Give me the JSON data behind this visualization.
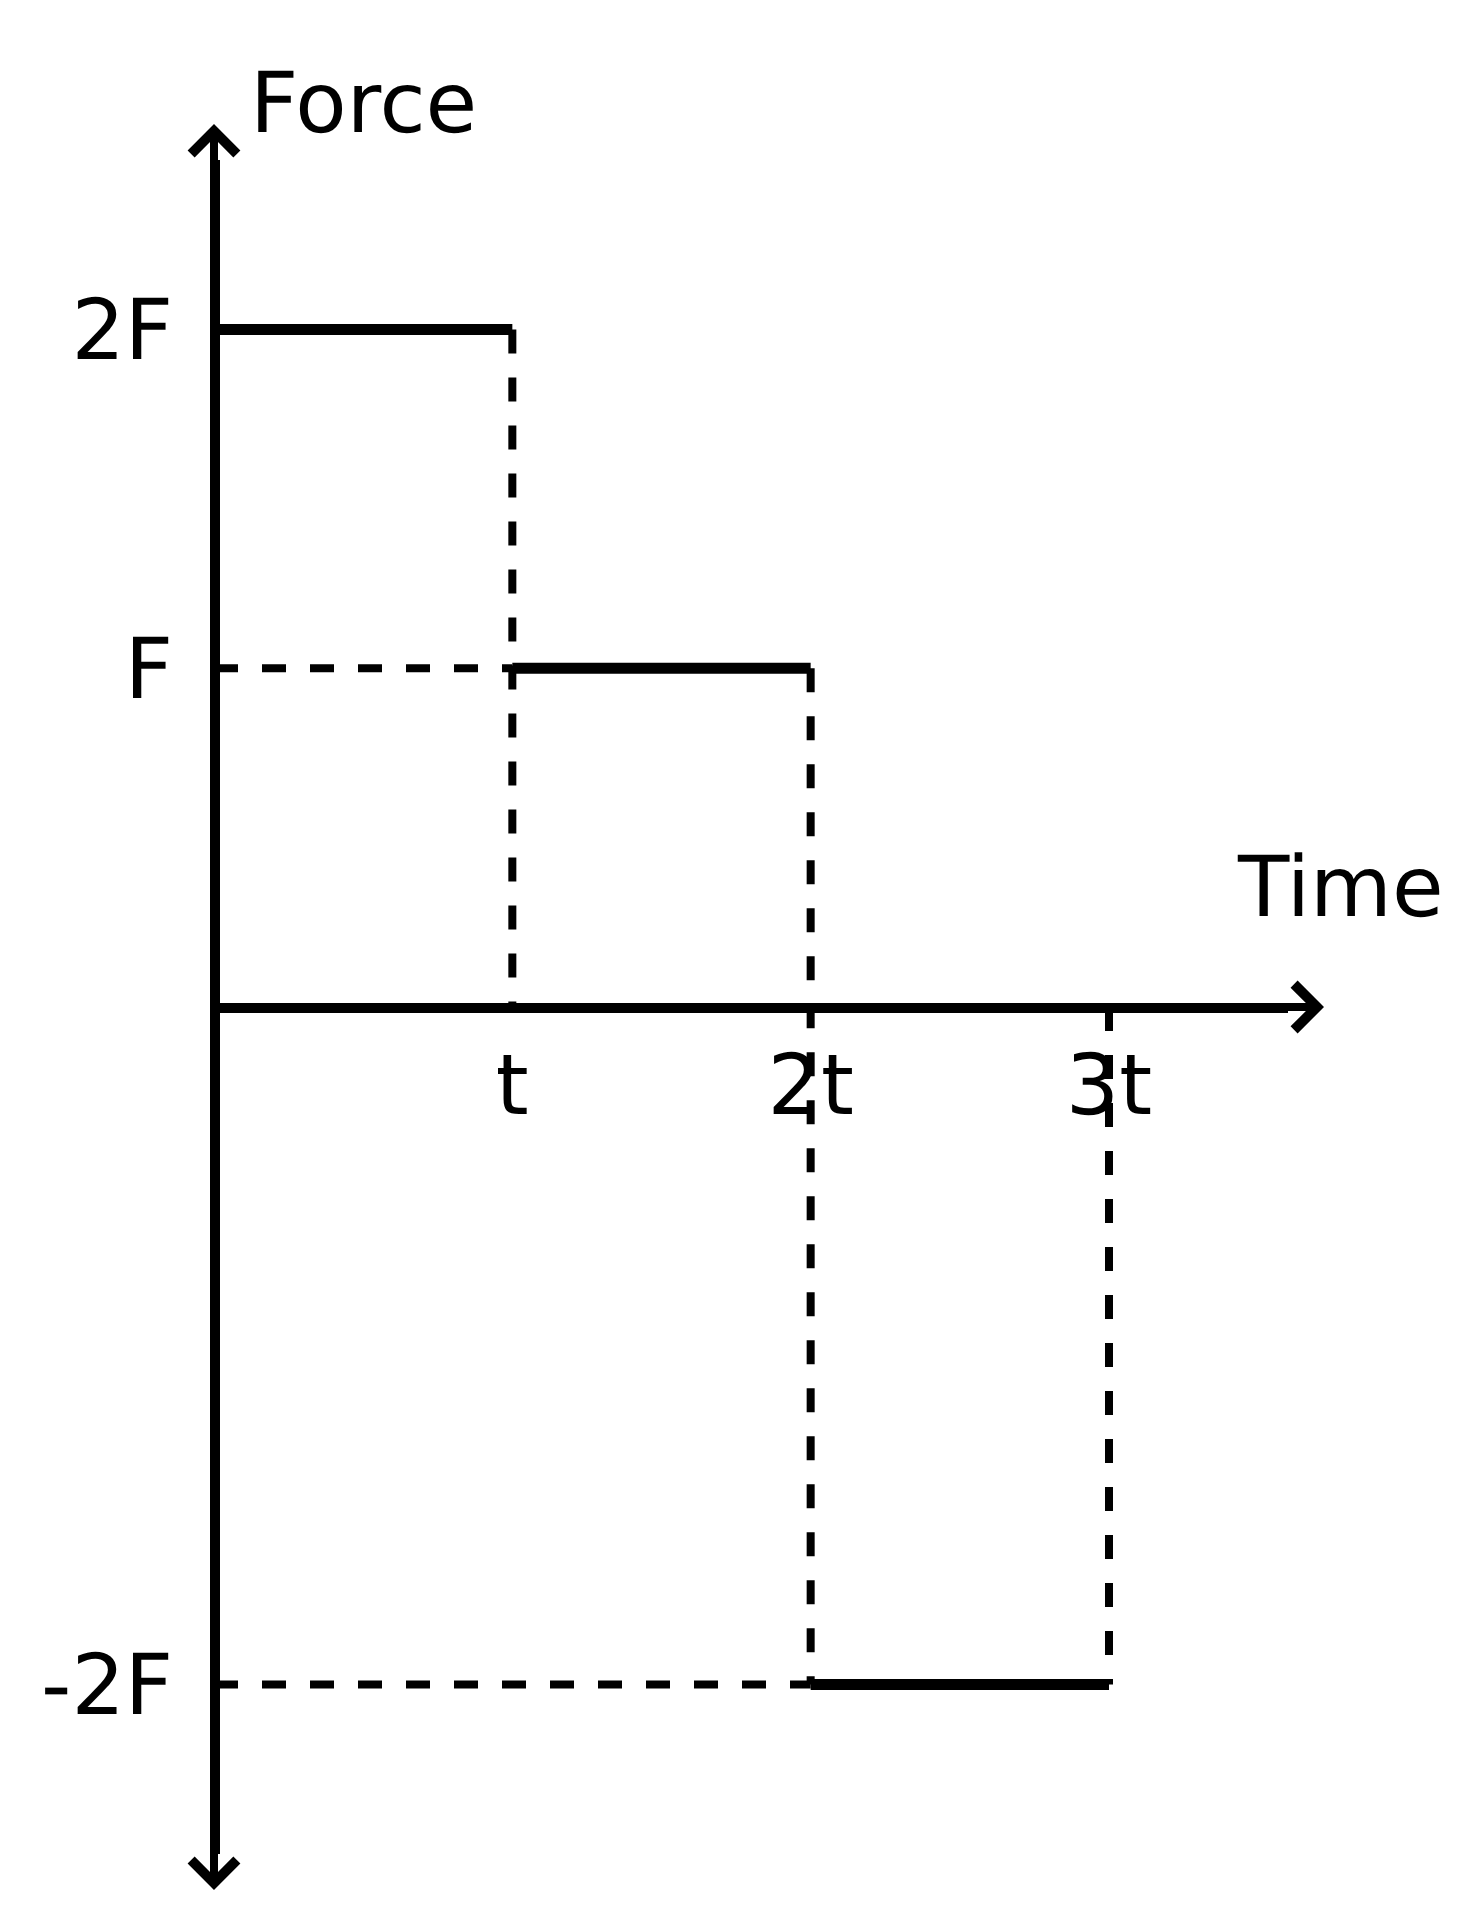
{
  "chart_data": {
    "type": "line",
    "xlabel": "Time",
    "ylabel": "Force",
    "xlim": [
      0,
      3.6
    ],
    "ylim": [
      -2.5,
      2.5
    ],
    "xticks": [
      {
        "value": 1,
        "label": "t"
      },
      {
        "value": 2,
        "label": "2t"
      },
      {
        "value": 3,
        "label": "3t"
      }
    ],
    "yticks": [
      {
        "value": 2,
        "label": "2F"
      },
      {
        "value": 1,
        "label": "F"
      },
      {
        "value": -2,
        "label": "-2F"
      }
    ],
    "series": [
      {
        "color": "#000000",
        "line_style": "dashed",
        "x": [
          1,
          1
        ],
        "values": [
          2,
          0
        ]
      },
      {
        "color": "#000000",
        "line_style": "dashed",
        "x": [
          0,
          1
        ],
        "values": [
          1,
          1
        ]
      },
      {
        "color": "#000000",
        "line_style": "dashed",
        "x": [
          2,
          2
        ],
        "values": [
          1,
          -2
        ]
      },
      {
        "color": "#000000",
        "line_style": "dashed",
        "x": [
          0,
          2
        ],
        "values": [
          -2,
          -2
        ]
      },
      {
        "color": "#000000",
        "line_style": "dashed",
        "x": [
          3,
          3
        ],
        "values": [
          0,
          -2
        ]
      },
      {
        "color": "#000000",
        "line_style": "solid",
        "x": [
          0,
          1
        ],
        "values": [
          2,
          2
        ]
      },
      {
        "color": "#000000",
        "line_style": "solid",
        "x": [
          1,
          2
        ],
        "values": [
          1,
          1
        ]
      },
      {
        "color": "#000000",
        "line_style": "solid",
        "x": [
          2,
          3
        ],
        "values": [
          -2,
          -2
        ]
      }
    ]
  }
}
